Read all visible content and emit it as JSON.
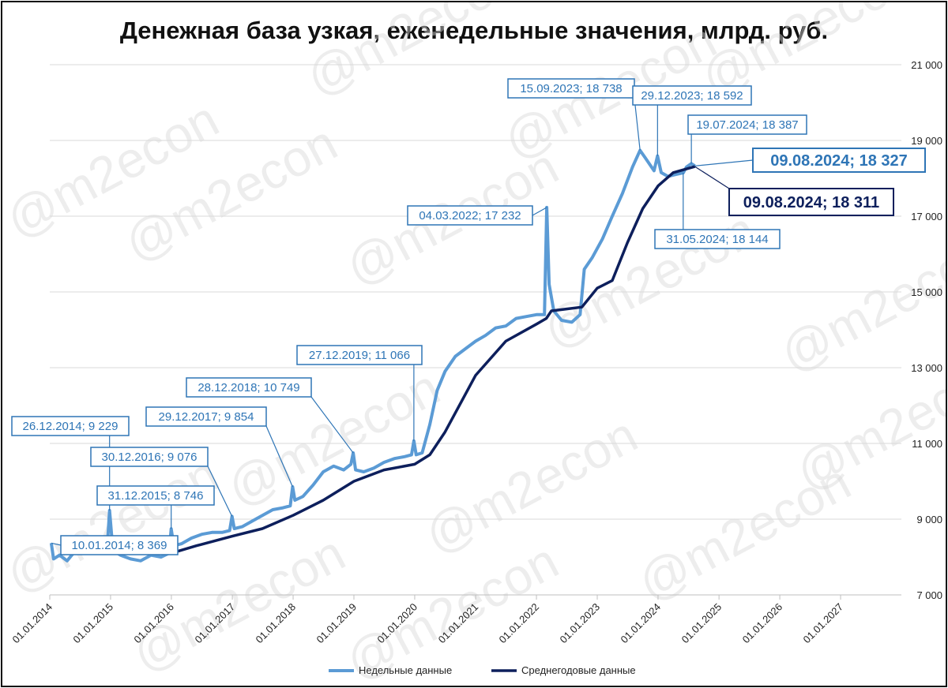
{
  "chart_data": {
    "type": "line",
    "title": "Денежная база узкая, еженедельные значения, млрд. руб.",
    "xlabel": "",
    "ylabel": "",
    "ylim": [
      7000,
      21000
    ],
    "y_ticks": [
      "7 000",
      "9 000",
      "11 000",
      "13 000",
      "15 000",
      "17 000",
      "19 000",
      "21 000"
    ],
    "x_tick_labels": [
      "01.01.2014",
      "01.01.2015",
      "01.01.2016",
      "01.01.2017",
      "01.01.2018",
      "01.01.2019",
      "01.01.2020",
      "01.01.2021",
      "01.01.2022",
      "01.01.2023",
      "01.01.2024",
      "01.01.2025",
      "01.01.2026",
      "01.01.2027"
    ],
    "x_range": [
      "2014-01-01",
      "2028-01-01"
    ],
    "grid": true,
    "legend_position": "bottom",
    "series": [
      {
        "name": "Недельные данные",
        "color": "#5b9bd5",
        "points": [
          [
            "2014-01-10",
            8369
          ],
          [
            "2014-01-24",
            7950
          ],
          [
            "2014-03-01",
            8050
          ],
          [
            "2014-04-15",
            7900
          ],
          [
            "2014-06-01",
            8150
          ],
          [
            "2014-08-01",
            8100
          ],
          [
            "2014-10-01",
            8150
          ],
          [
            "2014-12-12",
            8250
          ],
          [
            "2014-12-26",
            9229
          ],
          [
            "2015-01-09",
            8500
          ],
          [
            "2015-01-23",
            8150
          ],
          [
            "2015-03-01",
            8050
          ],
          [
            "2015-05-01",
            7950
          ],
          [
            "2015-07-01",
            7900
          ],
          [
            "2015-09-01",
            8050
          ],
          [
            "2015-11-01",
            8000
          ],
          [
            "2015-12-18",
            8100
          ],
          [
            "2015-12-31",
            8746
          ],
          [
            "2016-01-15",
            8300
          ],
          [
            "2016-03-01",
            8350
          ],
          [
            "2016-05-01",
            8500
          ],
          [
            "2016-07-01",
            8600
          ],
          [
            "2016-09-01",
            8650
          ],
          [
            "2016-11-01",
            8650
          ],
          [
            "2016-12-16",
            8700
          ],
          [
            "2016-12-30",
            9076
          ],
          [
            "2017-01-13",
            8750
          ],
          [
            "2017-03-01",
            8800
          ],
          [
            "2017-05-01",
            8950
          ],
          [
            "2017-07-01",
            9100
          ],
          [
            "2017-09-01",
            9250
          ],
          [
            "2017-11-01",
            9300
          ],
          [
            "2017-12-15",
            9350
          ],
          [
            "2017-12-29",
            9854
          ],
          [
            "2018-01-12",
            9500
          ],
          [
            "2018-03-01",
            9600
          ],
          [
            "2018-05-01",
            9900
          ],
          [
            "2018-07-01",
            10250
          ],
          [
            "2018-09-01",
            10400
          ],
          [
            "2018-11-01",
            10300
          ],
          [
            "2018-12-14",
            10450
          ],
          [
            "2018-12-28",
            10749
          ],
          [
            "2019-01-11",
            10300
          ],
          [
            "2019-03-01",
            10250
          ],
          [
            "2019-05-01",
            10350
          ],
          [
            "2019-07-01",
            10500
          ],
          [
            "2019-09-01",
            10600
          ],
          [
            "2019-11-01",
            10650
          ],
          [
            "2019-12-13",
            10700
          ],
          [
            "2019-12-27",
            11066
          ],
          [
            "2020-01-10",
            10700
          ],
          [
            "2020-02-15",
            10750
          ],
          [
            "2020-04-01",
            11500
          ],
          [
            "2020-05-15",
            12400
          ],
          [
            "2020-07-01",
            12900
          ],
          [
            "2020-09-01",
            13300
          ],
          [
            "2020-11-01",
            13500
          ],
          [
            "2021-01-01",
            13700
          ],
          [
            "2021-03-01",
            13850
          ],
          [
            "2021-05-01",
            14050
          ],
          [
            "2021-07-01",
            14100
          ],
          [
            "2021-09-01",
            14300
          ],
          [
            "2021-11-01",
            14350
          ],
          [
            "2022-01-01",
            14400
          ],
          [
            "2022-02-18",
            14400
          ],
          [
            "2022-03-04",
            17232
          ],
          [
            "2022-03-18",
            15200
          ],
          [
            "2022-04-15",
            14500
          ],
          [
            "2022-06-01",
            14250
          ],
          [
            "2022-08-01",
            14200
          ],
          [
            "2022-09-20",
            14400
          ],
          [
            "2022-10-15",
            15600
          ],
          [
            "2022-12-01",
            15900
          ],
          [
            "2023-02-01",
            16400
          ],
          [
            "2023-04-01",
            17000
          ],
          [
            "2023-06-01",
            17600
          ],
          [
            "2023-08-01",
            18300
          ],
          [
            "2023-09-15",
            18738
          ],
          [
            "2023-10-15",
            18550
          ],
          [
            "2023-12-08",
            18200
          ],
          [
            "2023-12-29",
            18592
          ],
          [
            "2024-01-20",
            18150
          ],
          [
            "2024-03-01",
            18050
          ],
          [
            "2024-04-15",
            18100
          ],
          [
            "2024-05-31",
            18144
          ],
          [
            "2024-06-20",
            18300
          ],
          [
            "2024-07-19",
            18387
          ],
          [
            "2024-08-09",
            18327
          ]
        ]
      },
      {
        "name": "Среднегодовые данные",
        "color": "#0d1f5c",
        "points": [
          [
            "2015-12-31",
            8100
          ],
          [
            "2016-06-01",
            8300
          ],
          [
            "2017-01-01",
            8550
          ],
          [
            "2017-07-01",
            8750
          ],
          [
            "2018-01-01",
            9100
          ],
          [
            "2018-07-01",
            9500
          ],
          [
            "2019-01-01",
            10000
          ],
          [
            "2019-07-01",
            10300
          ],
          [
            "2020-01-01",
            10450
          ],
          [
            "2020-04-01",
            10700
          ],
          [
            "2020-07-01",
            11300
          ],
          [
            "2021-01-01",
            12800
          ],
          [
            "2021-07-01",
            13700
          ],
          [
            "2022-01-01",
            14150
          ],
          [
            "2022-03-01",
            14300
          ],
          [
            "2022-04-01",
            14500
          ],
          [
            "2022-07-01",
            14550
          ],
          [
            "2022-10-01",
            14600
          ],
          [
            "2023-01-01",
            15100
          ],
          [
            "2023-04-01",
            15300
          ],
          [
            "2023-07-01",
            16300
          ],
          [
            "2023-10-01",
            17200
          ],
          [
            "2024-01-01",
            17800
          ],
          [
            "2024-04-01",
            18150
          ],
          [
            "2024-08-09",
            18311
          ]
        ]
      }
    ],
    "annotations": [
      {
        "text": "10.01.2014; 8 369",
        "date": "2014-01-10",
        "value": 8369,
        "style": "small"
      },
      {
        "text": "26.12.2014; 9 229",
        "date": "2014-12-26",
        "value": 9229,
        "style": "small"
      },
      {
        "text": "31.12.2015; 8 746",
        "date": "2015-12-31",
        "value": 8746,
        "style": "small"
      },
      {
        "text": "30.12.2016; 9 076",
        "date": "2016-12-30",
        "value": 9076,
        "style": "small"
      },
      {
        "text": "29.12.2017; 9 854",
        "date": "2017-12-29",
        "value": 9854,
        "style": "small"
      },
      {
        "text": "28.12.2018; 10 749",
        "date": "2018-12-28",
        "value": 10749,
        "style": "small"
      },
      {
        "text": "27.12.2019; 11 066",
        "date": "2019-12-27",
        "value": 11066,
        "style": "small"
      },
      {
        "text": "04.03.2022; 17 232",
        "date": "2022-03-04",
        "value": 17232,
        "style": "small"
      },
      {
        "text": "15.09.2023; 18 738",
        "date": "2023-09-15",
        "value": 18738,
        "style": "small"
      },
      {
        "text": "29.12.2023; 18 592",
        "date": "2023-12-29",
        "value": 18592,
        "style": "small"
      },
      {
        "text": "19.07.2024; 18 387",
        "date": "2024-07-19",
        "value": 18387,
        "style": "small"
      },
      {
        "text": "31.05.2024; 18 144",
        "date": "2024-05-31",
        "value": 18144,
        "style": "small"
      },
      {
        "text": "09.08.2024; 18 327",
        "date": "2024-08-09",
        "value": 18327,
        "style": "big-light"
      },
      {
        "text": "09.08.2024; 18 311",
        "date": "2024-08-09",
        "value": 18311,
        "style": "big-dark"
      }
    ]
  },
  "watermark": "@m2econ"
}
